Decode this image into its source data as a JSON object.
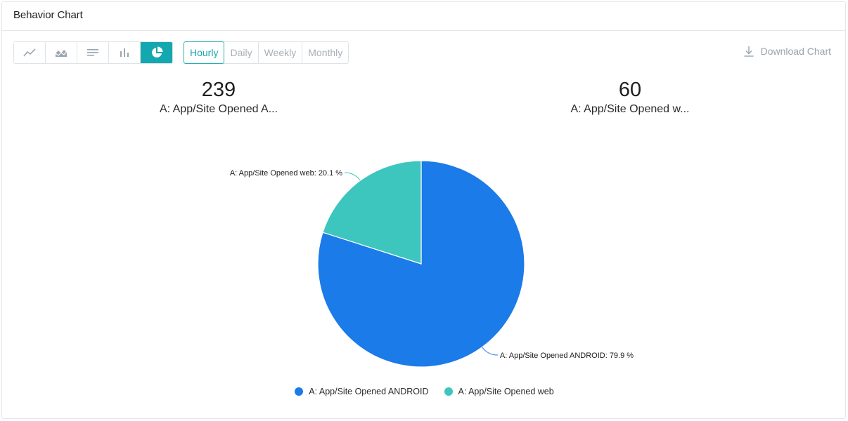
{
  "header": {
    "title": "Behavior Chart"
  },
  "toolbar": {
    "chart_types": [
      {
        "icon": "line-chart-icon",
        "active": false
      },
      {
        "icon": "area-chart-icon",
        "active": false
      },
      {
        "icon": "list-chart-icon",
        "active": false
      },
      {
        "icon": "bar-chart-icon",
        "active": false
      },
      {
        "icon": "pie-chart-icon",
        "active": true
      }
    ],
    "granularity": [
      "Hourly",
      "Daily",
      "Weekly",
      "Monthly"
    ],
    "granularity_selected": "Hourly",
    "download_label": "Download Chart",
    "download_icon": "download-icon"
  },
  "stats": [
    {
      "value": "239",
      "label": "A: App/Site Opened A..."
    },
    {
      "value": "60",
      "label": "A: App/Site Opened w..."
    }
  ],
  "colors": {
    "accent": "#13a8b0",
    "android": "#1b7be8",
    "web": "#3cc6be"
  },
  "chart_data": {
    "type": "pie",
    "slices": [
      {
        "name": "A: App/Site Opened ANDROID",
        "value": 239,
        "percent": 79.9,
        "label": "A: App/Site Opened ANDROID: 79.9 %",
        "color": "#1b7be8"
      },
      {
        "name": "A: App/Site Opened web",
        "value": 60,
        "percent": 20.1,
        "label": "A: App/Site Opened web: 20.1 %",
        "color": "#3cc6be"
      }
    ],
    "legend": {
      "placement": "bottom-center",
      "entries": [
        "A: App/Site Opened ANDROID",
        "A: App/Site Opened web"
      ]
    }
  }
}
